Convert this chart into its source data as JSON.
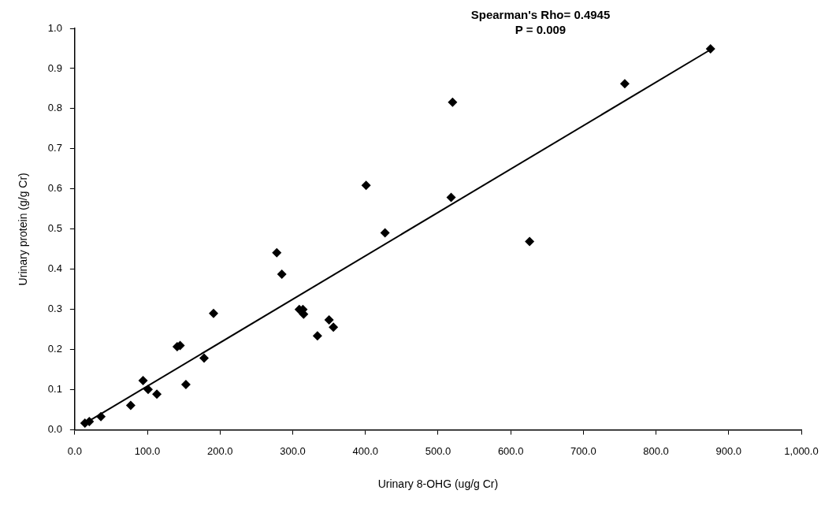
{
  "chart_data": {
    "type": "scatter",
    "xlabel": "Urinary 8-OHG (ug/g Cr)",
    "ylabel": "Urinary protein (g/g Cr)",
    "annotations": [
      "Spearman's Rho= 0.4945",
      "P = 0.009"
    ],
    "series": [
      {
        "color": "#000000",
        "marker": "diamond",
        "x": [
          14,
          20,
          36,
          77,
          94,
          101,
          113,
          141,
          145,
          153,
          178,
          191,
          278,
          285,
          309,
          314,
          315,
          334,
          350,
          356,
          401,
          427,
          518,
          520,
          626,
          757,
          875
        ],
        "values": [
          0.017,
          0.021,
          0.033,
          0.061,
          0.123,
          0.101,
          0.089,
          0.207,
          0.21,
          0.113,
          0.179,
          0.29,
          0.441,
          0.388,
          0.3,
          0.3,
          0.288,
          0.234,
          0.274,
          0.256,
          0.609,
          0.491,
          0.579,
          0.816,
          0.469,
          0.862,
          0.949
        ]
      },
      {
        "type": "line",
        "color": "#000000",
        "marker": "none",
        "line_style": "solid",
        "x": [
          13,
          875
        ],
        "values": [
          0.015,
          0.947
        ]
      }
    ],
    "xlim": [
      0,
      1000
    ],
    "xticks": [
      {
        "value": 0,
        "label": "0.0"
      },
      {
        "value": 100,
        "label": "100.0"
      },
      {
        "value": 200,
        "label": "200.0"
      },
      {
        "value": 300,
        "label": "300.0"
      },
      {
        "value": 400,
        "label": "400.0"
      },
      {
        "value": 500,
        "label": "500.0"
      },
      {
        "value": 600,
        "label": "600.0"
      },
      {
        "value": 700,
        "label": "700.0"
      },
      {
        "value": 800,
        "label": "800.0"
      },
      {
        "value": 900,
        "label": "900.0"
      },
      {
        "value": 1000,
        "label": "1,000.0"
      }
    ],
    "ylim": [
      0,
      1
    ],
    "yticks": [
      {
        "value": 0,
        "label": "0.0"
      },
      {
        "value": 0.1,
        "label": "0.1"
      },
      {
        "value": 0.2,
        "label": "0.2"
      },
      {
        "value": 0.3,
        "label": "0.3"
      },
      {
        "value": 0.4,
        "label": "0.4"
      },
      {
        "value": 0.5,
        "label": "0.5"
      },
      {
        "value": 0.6,
        "label": "0.6"
      },
      {
        "value": 0.7,
        "label": "0.7"
      },
      {
        "value": 0.8,
        "label": "0.8"
      },
      {
        "value": 0.9,
        "label": "0.9"
      },
      {
        "value": 1,
        "label": "1.0"
      }
    ],
    "grid": false,
    "legend": false
  }
}
